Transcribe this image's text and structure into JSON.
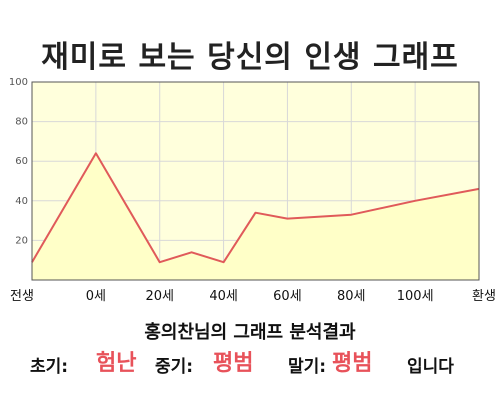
{
  "chart_data": {
    "type": "area",
    "title": "재미로 보는 당신의 인생 그래프",
    "x_tick_labels": [
      "전생",
      "0세",
      "20세",
      "40세",
      "60세",
      "80세",
      "100세",
      "환생"
    ],
    "y_ticks": [
      20,
      40,
      60,
      80,
      100
    ],
    "ylim": [
      0,
      100
    ],
    "grid": true,
    "series": [
      {
        "values": [
          {
            "x": "전생",
            "y": 9
          },
          {
            "x": "0세",
            "y": 64
          },
          {
            "x": "20세",
            "y": 9
          },
          {
            "x": "30세",
            "y": 14
          },
          {
            "x": "40세",
            "y": 9
          },
          {
            "x": "50세",
            "y": 34
          },
          {
            "x": "60세",
            "y": 31
          },
          {
            "x": "80세",
            "y": 33
          },
          {
            "x": "100세",
            "y": 40
          },
          {
            "x": "환생",
            "y": 46
          }
        ]
      }
    ],
    "colors": {
      "fill": "#ffffc8",
      "line": "#e05a5a",
      "grid": "#d8d8d8",
      "plot_bg": "#ffffdc"
    }
  },
  "summary": "홍의찬님의 그래프 분석결과",
  "result": {
    "early_label": "초기:",
    "early_value": "험난",
    "mid_label": "중기:",
    "mid_value": "평범",
    "late_label": "말기:",
    "late_value": "평범",
    "suffix": "입니다"
  }
}
